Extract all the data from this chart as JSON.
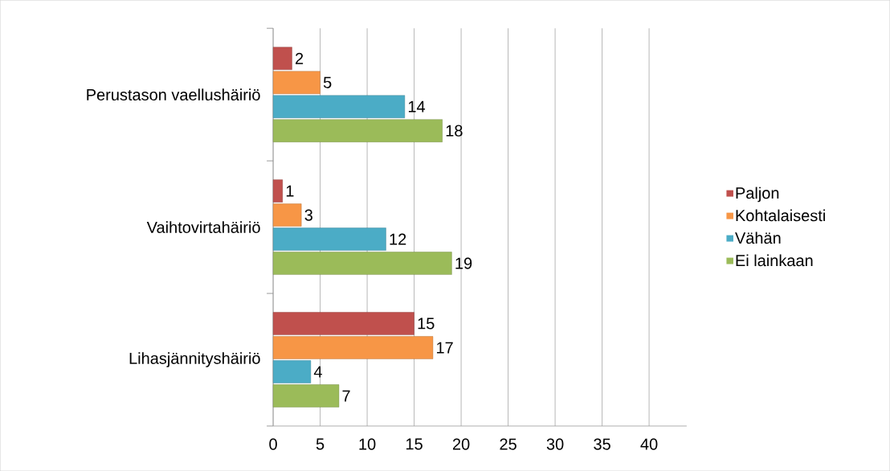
{
  "chart_data": {
    "type": "bar",
    "orientation": "horizontal",
    "categories": [
      "Perustason vaellushäiriö",
      "Vaihtovirtahäiriö",
      "Lihasjännityshäiriö"
    ],
    "series": [
      {
        "name": "Paljon",
        "color": "#c0504d",
        "values": [
          2,
          1,
          15
        ]
      },
      {
        "name": "Kohtalaisesti",
        "color": "#f79646",
        "values": [
          5,
          3,
          17
        ]
      },
      {
        "name": "Vähän",
        "color": "#4bacc6",
        "values": [
          14,
          12,
          4
        ]
      },
      {
        "name": "Ei lainkaan",
        "color": "#9bbb59",
        "values": [
          18,
          19,
          7
        ]
      }
    ],
    "xlim": [
      0,
      44
    ],
    "xticks": [
      0,
      5,
      10,
      15,
      20,
      25,
      30,
      35,
      40
    ],
    "grid": "x",
    "legend": "right",
    "data_labels": true
  }
}
